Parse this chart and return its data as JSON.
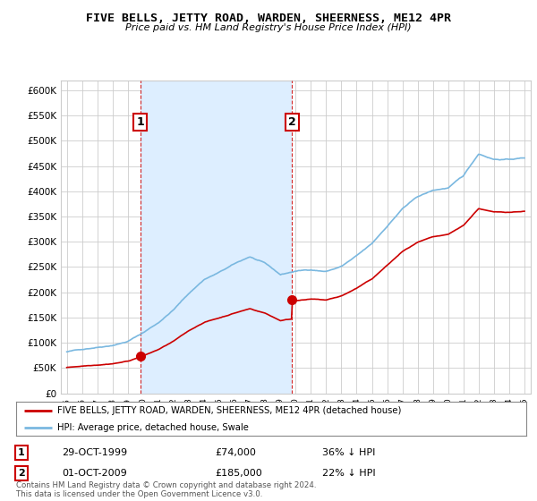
{
  "title": "FIVE BELLS, JETTY ROAD, WARDEN, SHEERNESS, ME12 4PR",
  "subtitle": "Price paid vs. HM Land Registry's House Price Index (HPI)",
  "ylabel_ticks": [
    "£0",
    "£50K",
    "£100K",
    "£150K",
    "£200K",
    "£250K",
    "£300K",
    "£350K",
    "£400K",
    "£450K",
    "£500K",
    "£550K",
    "£600K"
  ],
  "ylim": [
    0,
    620000
  ],
  "yticks": [
    0,
    50000,
    100000,
    150000,
    200000,
    250000,
    300000,
    350000,
    400000,
    450000,
    500000,
    550000,
    600000
  ],
  "hpi_color": "#7ab8e0",
  "sale_color": "#cc0000",
  "vline_color": "#cc0000",
  "shade_color": "#ddeeff",
  "background_color": "#ffffff",
  "grid_color": "#cccccc",
  "sale1": {
    "date_num": 1999.83,
    "price": 74000,
    "label": "1",
    "pct": "36% ↓ HPI",
    "date_str": "29-OCT-1999"
  },
  "sale2": {
    "date_num": 2009.75,
    "price": 185000,
    "label": "2",
    "pct": "22% ↓ HPI",
    "date_str": "01-OCT-2009"
  },
  "legend_line1": "FIVE BELLS, JETTY ROAD, WARDEN, SHEERNESS, ME12 4PR (detached house)",
  "legend_line2": "HPI: Average price, detached house, Swale",
  "footnote": "Contains HM Land Registry data © Crown copyright and database right 2024.\nThis data is licensed under the Open Government Licence v3.0.",
  "xlim_start": 1994.6,
  "xlim_end": 2025.4,
  "hpi_knots": [
    1995,
    1996,
    1997,
    1998,
    1999,
    2000,
    2001,
    2002,
    2003,
    2004,
    2005,
    2006,
    2007,
    2008,
    2009,
    2010,
    2011,
    2012,
    2013,
    2014,
    2015,
    2016,
    2017,
    2018,
    2019,
    2020,
    2021,
    2022,
    2023,
    2024,
    2025
  ],
  "hpi_vals": [
    82000,
    87000,
    92000,
    97000,
    105000,
    122000,
    142000,
    168000,
    200000,
    228000,
    242000,
    258000,
    272000,
    258000,
    235000,
    242000,
    245000,
    242000,
    252000,
    272000,
    295000,
    330000,
    365000,
    388000,
    400000,
    405000,
    428000,
    472000,
    462000,
    462000,
    465000
  ],
  "red_knots_pre": [
    1995,
    1999.83
  ],
  "red_vals_pre": [
    50500,
    74000
  ],
  "red_knots_post": [
    2009.75,
    2010.5,
    2011,
    2012,
    2013,
    2014,
    2015,
    2016,
    2017,
    2018,
    2019,
    2020,
    2021,
    2022,
    2023,
    2024,
    2025
  ],
  "red_vals_post": [
    185000,
    188000,
    195000,
    192000,
    198000,
    210000,
    225000,
    248000,
    272000,
    296000,
    308000,
    315000,
    330000,
    375000,
    358000,
    362000,
    360000
  ]
}
